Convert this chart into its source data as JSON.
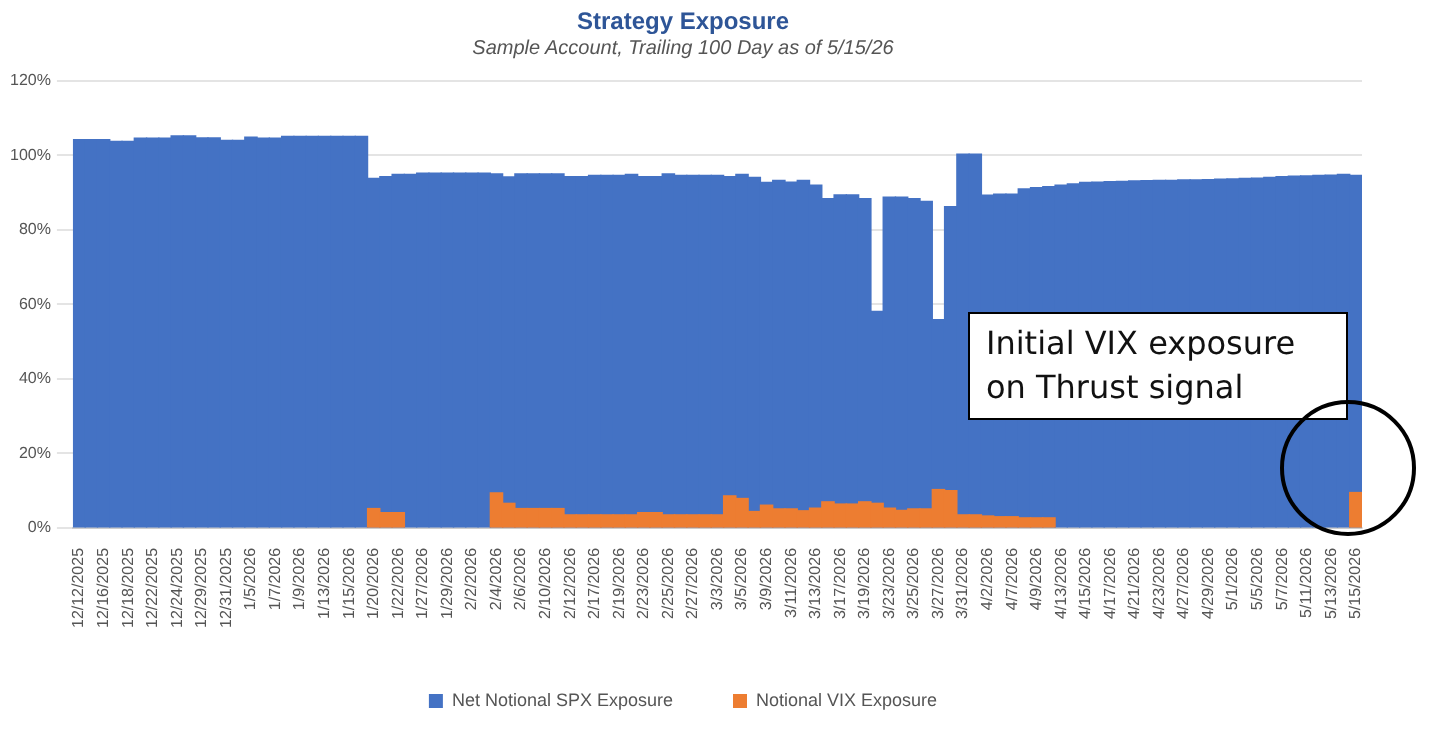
{
  "chart_data": {
    "type": "bar",
    "title": "Strategy Exposure",
    "subtitle": "Sample Account, Trailing 100 Day as of 5/15/26",
    "categories": [
      "12/12/2025",
      null,
      "12/16/2025",
      null,
      "12/18/2025",
      null,
      "12/22/2025",
      null,
      "12/24/2025",
      null,
      "12/29/2025",
      null,
      "12/31/2025",
      null,
      "1/5/2026",
      null,
      "1/7/2026",
      null,
      "1/9/2026",
      null,
      "1/13/2026",
      null,
      "1/15/2026",
      null,
      "1/20/2026",
      null,
      "1/22/2026",
      null,
      "1/27/2026",
      null,
      "1/29/2026",
      null,
      "2/2/2026",
      null,
      "2/4/2026",
      null,
      "2/6/2026",
      null,
      "2/10/2026",
      null,
      "2/12/2026",
      null,
      "2/17/2026",
      null,
      "2/19/2026",
      null,
      "2/23/2026",
      null,
      "2/25/2026",
      null,
      "2/27/2026",
      null,
      "3/3/2026",
      null,
      "3/5/2026",
      null,
      "3/9/2026",
      null,
      "3/11/2026",
      null,
      "3/13/2026",
      null,
      "3/17/2026",
      null,
      "3/19/2026",
      null,
      "3/23/2026",
      null,
      "3/25/2026",
      null,
      "3/27/2026",
      null,
      "3/31/2026",
      null,
      "4/2/2026",
      null,
      "4/7/2026",
      null,
      "4/9/2026",
      null,
      "4/13/2026",
      null,
      "4/15/2026",
      null,
      "4/17/2026",
      null,
      "4/21/2026",
      null,
      "4/23/2026",
      null,
      "4/27/2026",
      null,
      "4/29/2026",
      null,
      "5/1/2026",
      null,
      "5/5/2026",
      null,
      "5/7/2026",
      null,
      "5/11/2026",
      null,
      "5/13/2026",
      null,
      "5/15/2026"
    ],
    "series": [
      {
        "name": "Net Notional SPX Exposure",
        "color": "#4472c4",
        "values": [
          104.2,
          104.2,
          104.2,
          103.7,
          103.7,
          104.6,
          104.6,
          104.6,
          105.2,
          105.2,
          104.7,
          104.7,
          104,
          104,
          104.9,
          104.6,
          104.6,
          105.1,
          105.1,
          105.1,
          105.1,
          105.1,
          105.1,
          105.1,
          93.8,
          94.3,
          94.9,
          94.9,
          95.2,
          95.2,
          95.2,
          95.2,
          95.2,
          95.2,
          95,
          94.2,
          95,
          95,
          95,
          95,
          94.3,
          94.3,
          94.6,
          94.6,
          94.6,
          94.9,
          94.3,
          94.3,
          95,
          94.6,
          94.6,
          94.6,
          94.6,
          94.3,
          94.9,
          94.1,
          92.7,
          93.3,
          92.8,
          93.3,
          92,
          88.4,
          89.4,
          89.4,
          88.4,
          58.1,
          88.8,
          88.8,
          88.4,
          87.6,
          55.9,
          86.2,
          100.3,
          100.3,
          89.3,
          89.6,
          89.6,
          91,
          91.3,
          91.6,
          92,
          92.3,
          92.7,
          92.8,
          92.9,
          93,
          93.1,
          93.2,
          93.3,
          93.3,
          93.4,
          93.4,
          93.5,
          93.6,
          93.7,
          93.8,
          93.9,
          94.1,
          94.3,
          94.4,
          94.5,
          94.6,
          94.7,
          94.9,
          94.6
        ]
      },
      {
        "name": "Notional VIX Exposure",
        "color": "#ed7d31",
        "values": [
          null,
          null,
          null,
          null,
          null,
          null,
          null,
          null,
          null,
          null,
          null,
          null,
          null,
          null,
          null,
          null,
          null,
          null,
          null,
          null,
          null,
          null,
          null,
          null,
          5.2,
          4.1,
          4.1,
          null,
          null,
          null,
          null,
          null,
          null,
          null,
          9.4,
          6.6,
          5.2,
          5.2,
          5.2,
          5.2,
          3.5,
          3.5,
          3.5,
          3.5,
          3.5,
          3.5,
          4.1,
          4.1,
          3.5,
          3.5,
          3.5,
          3.5,
          3.5,
          8.6,
          7.9,
          4.4,
          6.1,
          5.1,
          5.1,
          4.6,
          5.3,
          7,
          6.4,
          6.4,
          7,
          6.6,
          5.3,
          4.7,
          5.1,
          5.1,
          10.3,
          10,
          3.5,
          3.5,
          3.2,
          3,
          3,
          2.7,
          2.7,
          2.7,
          null,
          null,
          null,
          null,
          null,
          null,
          null,
          null,
          null,
          null,
          null,
          null,
          null,
          null,
          null,
          null,
          null,
          null,
          null,
          null,
          null,
          null,
          null,
          null,
          9.5
        ]
      }
    ],
    "ylim": [
      0,
      120
    ],
    "yticks": [
      {
        "value": 0,
        "label": "0%"
      },
      {
        "value": 20,
        "label": "20%"
      },
      {
        "value": 40,
        "label": "40%"
      },
      {
        "value": 60,
        "label": "60%"
      },
      {
        "value": 80,
        "label": "80%"
      },
      {
        "value": 100,
        "label": "100%"
      },
      {
        "value": 120,
        "label": "120%"
      }
    ],
    "grid": "y",
    "legend": "bottom",
    "annotations": [
      "Initial VIX exposure on Thrust signal"
    ]
  }
}
